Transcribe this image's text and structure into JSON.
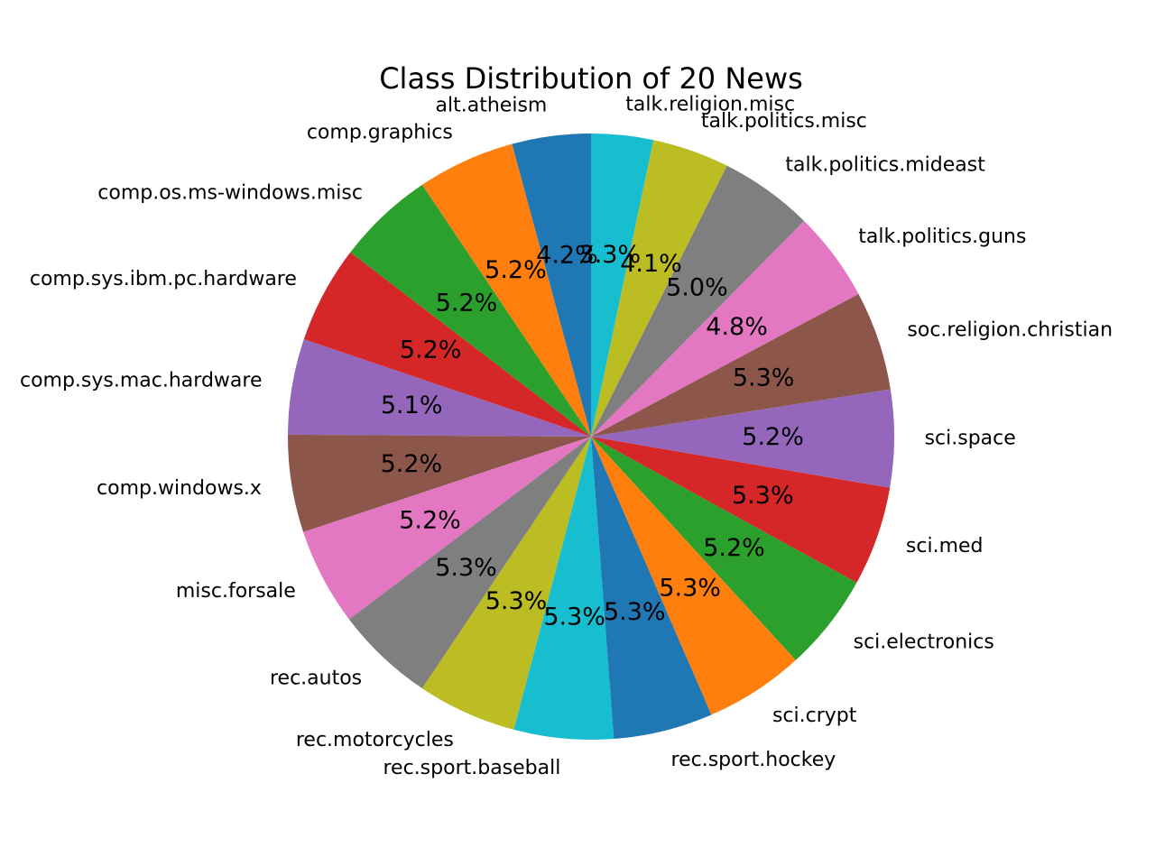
{
  "chart_data": {
    "type": "pie",
    "title": "Class Distribution of 20 News",
    "start_angle_deg": 90,
    "direction": "counterclockwise",
    "categories": [
      "alt.atheism",
      "comp.graphics",
      "comp.os.ms-windows.misc",
      "comp.sys.ibm.pc.hardware",
      "comp.sys.mac.hardware",
      "comp.windows.x",
      "misc.forsale",
      "rec.autos",
      "rec.motorcycles",
      "rec.sport.baseball",
      "rec.sport.hockey",
      "sci.crypt",
      "sci.electronics",
      "sci.med",
      "sci.space",
      "soc.religion.christian",
      "talk.politics.guns",
      "talk.politics.mideast",
      "talk.politics.misc",
      "talk.religion.misc"
    ],
    "values": [
      4.2,
      5.2,
      5.2,
      5.2,
      5.1,
      5.2,
      5.2,
      5.3,
      5.3,
      5.3,
      5.3,
      5.3,
      5.2,
      5.3,
      5.2,
      5.3,
      4.8,
      5.0,
      4.1,
      3.3
    ],
    "percent_labels": [
      "4.2%",
      "5.2%",
      "5.2%",
      "5.2%",
      "5.1%",
      "5.2%",
      "5.2%",
      "5.3%",
      "5.3%",
      "5.3%",
      "5.3%",
      "5.3%",
      "5.2%",
      "5.3%",
      "5.2%",
      "5.3%",
      "4.8%",
      "5.0%",
      "4.1%",
      "3.3%"
    ],
    "colors": [
      "#1f77b4",
      "#ff7f0e",
      "#2ca02c",
      "#d62728",
      "#9467bd",
      "#8c564b",
      "#e377c2",
      "#7f7f7f",
      "#bcbd22",
      "#17becf",
      "#1f77b4",
      "#ff7f0e",
      "#2ca02c",
      "#d62728",
      "#9467bd",
      "#8c564b",
      "#e377c2",
      "#7f7f7f",
      "#bcbd22",
      "#17becf"
    ]
  }
}
